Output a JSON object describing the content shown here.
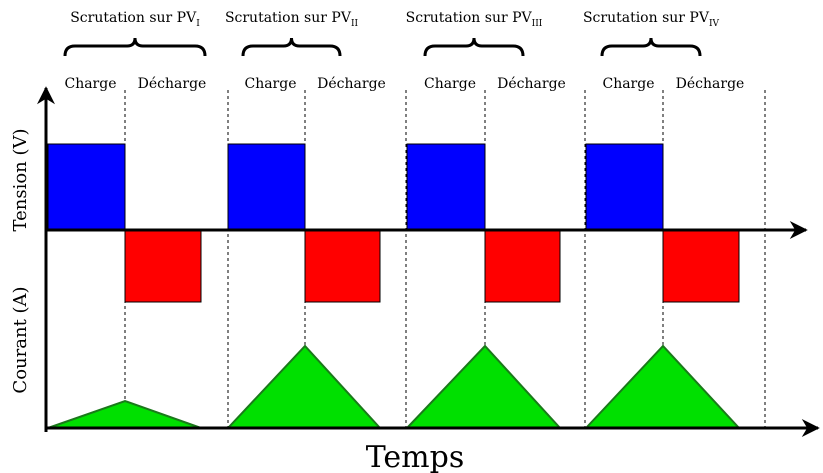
{
  "phases": [
    {
      "title": "Scrutation sur PV",
      "subscript": "I",
      "charge": "Charge",
      "discharge": "Décharge"
    },
    {
      "title": "Scrutation sur PV",
      "subscript": "II",
      "charge": "Charge",
      "discharge": "Décharge"
    },
    {
      "title": "Scrutation sur PV",
      "subscript": "III",
      "charge": "Charge",
      "discharge": "Décharge"
    },
    {
      "title": "Scrutation sur PV",
      "subscript": "IV",
      "charge": "Charge",
      "discharge": "Décharge"
    }
  ],
  "axes": {
    "voltage": "Tension (V)",
    "current": "Courant (A)",
    "time": "Temps"
  }
}
